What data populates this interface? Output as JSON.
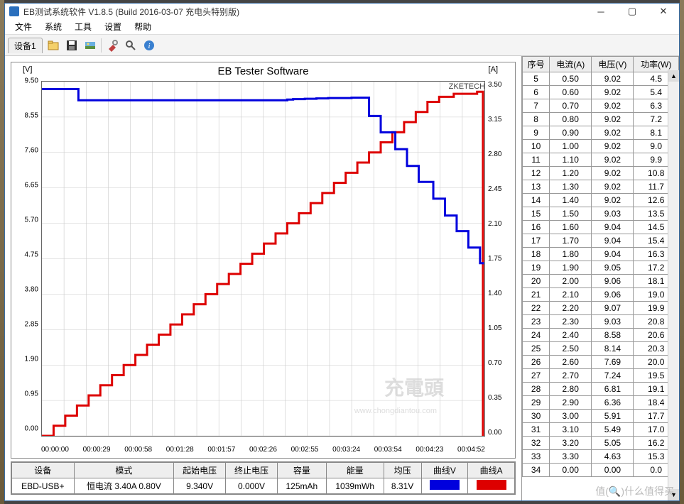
{
  "window": {
    "title": "EB测试系统软件 V1.8.5 (Build 2016-03-07 充电头特别版)"
  },
  "menu": [
    "文件",
    "系统",
    "工具",
    "设置",
    "帮助"
  ],
  "tab": "设备1",
  "chart": {
    "title": "EB Tester Software",
    "brand": "ZKETECH",
    "watermark1": "充電頭",
    "watermark2": "www.chongdiantou.com",
    "y_left_label": "[V]",
    "y_right_label": "[A]",
    "y_left_ticks": [
      "9.50",
      "8.55",
      "7.60",
      "6.65",
      "5.70",
      "4.75",
      "3.80",
      "2.85",
      "1.90",
      "0.95",
      "0.00"
    ],
    "y_right_ticks": [
      "3.50",
      "3.15",
      "2.80",
      "2.45",
      "2.10",
      "1.75",
      "1.40",
      "1.05",
      "0.70",
      "0.35",
      "0.00"
    ],
    "x_ticks": [
      "00:00:00",
      "00:00:29",
      "00:00:58",
      "00:01:28",
      "00:01:57",
      "00:02:26",
      "00:02:55",
      "00:03:24",
      "00:03:54",
      "00:04:23",
      "00:04:52"
    ],
    "series": {
      "voltage_color": "#0000dd",
      "current_color": "#dd0000",
      "voltage": [
        [
          0,
          9.3
        ],
        [
          25,
          9.0
        ],
        [
          168,
          9.02
        ],
        [
          172,
          9.03
        ],
        [
          180,
          9.04
        ],
        [
          188,
          9.05
        ],
        [
          196,
          9.06
        ],
        [
          204,
          9.06
        ],
        [
          212,
          9.07
        ],
        [
          224,
          8.58
        ],
        [
          232,
          8.14
        ],
        [
          242,
          7.69
        ],
        [
          250,
          7.24
        ],
        [
          258,
          6.81
        ],
        [
          268,
          6.36
        ],
        [
          276,
          5.91
        ],
        [
          284,
          5.49
        ],
        [
          292,
          5.05
        ],
        [
          300,
          4.63
        ],
        [
          302,
          4.6
        ]
      ],
      "current": [
        [
          0,
          0.0
        ],
        [
          8,
          0.1
        ],
        [
          16,
          0.2
        ],
        [
          24,
          0.3
        ],
        [
          32,
          0.4
        ],
        [
          40,
          0.5
        ],
        [
          48,
          0.6
        ],
        [
          56,
          0.7
        ],
        [
          64,
          0.8
        ],
        [
          72,
          0.9
        ],
        [
          80,
          1.0
        ],
        [
          88,
          1.1
        ],
        [
          96,
          1.2
        ],
        [
          104,
          1.3
        ],
        [
          112,
          1.4
        ],
        [
          120,
          1.5
        ],
        [
          128,
          1.6
        ],
        [
          136,
          1.7
        ],
        [
          144,
          1.8
        ],
        [
          152,
          1.9
        ],
        [
          160,
          2.0
        ],
        [
          168,
          2.1
        ],
        [
          176,
          2.2
        ],
        [
          184,
          2.3
        ],
        [
          192,
          2.4
        ],
        [
          200,
          2.5
        ],
        [
          208,
          2.6
        ],
        [
          216,
          2.7
        ],
        [
          224,
          2.8
        ],
        [
          232,
          2.9
        ],
        [
          240,
          3.0
        ],
        [
          248,
          3.1
        ],
        [
          256,
          3.2
        ],
        [
          264,
          3.3
        ],
        [
          272,
          3.35
        ],
        [
          282,
          3.38
        ],
        [
          298,
          3.4
        ],
        [
          302,
          3.4
        ],
        [
          302,
          0.0
        ]
      ],
      "x_max": 303,
      "v_max": 9.5,
      "a_max": 3.5
    }
  },
  "info": {
    "headers": [
      "设备",
      "模式",
      "起始电压",
      "终止电压",
      "容量",
      "能量",
      "均压",
      "曲线V",
      "曲线A"
    ],
    "device": "EBD-USB+",
    "mode": "恒电流  3.40A  0.80V",
    "start_v": "9.340V",
    "end_v": "0.000V",
    "capacity": "125mAh",
    "energy": "1039mWh",
    "avg_v": "8.31V",
    "color_v": "#0000dd",
    "color_a": "#dd0000"
  },
  "table": {
    "headers": [
      "序号",
      "电流(A)",
      "电压(V)",
      "功率(W)"
    ],
    "rows": [
      [
        "5",
        "0.50",
        "9.02",
        "4.5"
      ],
      [
        "6",
        "0.60",
        "9.02",
        "5.4"
      ],
      [
        "7",
        "0.70",
        "9.02",
        "6.3"
      ],
      [
        "8",
        "0.80",
        "9.02",
        "7.2"
      ],
      [
        "9",
        "0.90",
        "9.02",
        "8.1"
      ],
      [
        "10",
        "1.00",
        "9.02",
        "9.0"
      ],
      [
        "11",
        "1.10",
        "9.02",
        "9.9"
      ],
      [
        "12",
        "1.20",
        "9.02",
        "10.8"
      ],
      [
        "13",
        "1.30",
        "9.02",
        "11.7"
      ],
      [
        "14",
        "1.40",
        "9.02",
        "12.6"
      ],
      [
        "15",
        "1.50",
        "9.03",
        "13.5"
      ],
      [
        "16",
        "1.60",
        "9.04",
        "14.5"
      ],
      [
        "17",
        "1.70",
        "9.04",
        "15.4"
      ],
      [
        "18",
        "1.80",
        "9.04",
        "16.3"
      ],
      [
        "19",
        "1.90",
        "9.05",
        "17.2"
      ],
      [
        "20",
        "2.00",
        "9.06",
        "18.1"
      ],
      [
        "21",
        "2.10",
        "9.06",
        "19.0"
      ],
      [
        "22",
        "2.20",
        "9.07",
        "19.9"
      ],
      [
        "23",
        "2.30",
        "9.03",
        "20.8"
      ],
      [
        "24",
        "2.40",
        "8.58",
        "20.6"
      ],
      [
        "25",
        "2.50",
        "8.14",
        "20.3"
      ],
      [
        "26",
        "2.60",
        "7.69",
        "20.0"
      ],
      [
        "27",
        "2.70",
        "7.24",
        "19.5"
      ],
      [
        "28",
        "2.80",
        "6.81",
        "19.1"
      ],
      [
        "29",
        "2.90",
        "6.36",
        "18.4"
      ],
      [
        "30",
        "3.00",
        "5.91",
        "17.7"
      ],
      [
        "31",
        "3.10",
        "5.49",
        "17.0"
      ],
      [
        "32",
        "3.20",
        "5.05",
        "16.2"
      ],
      [
        "33",
        "3.30",
        "4.63",
        "15.3"
      ],
      [
        "34",
        "0.00",
        "0.00",
        "0.0"
      ]
    ]
  },
  "corner": "值(🔍)什么值得买"
}
